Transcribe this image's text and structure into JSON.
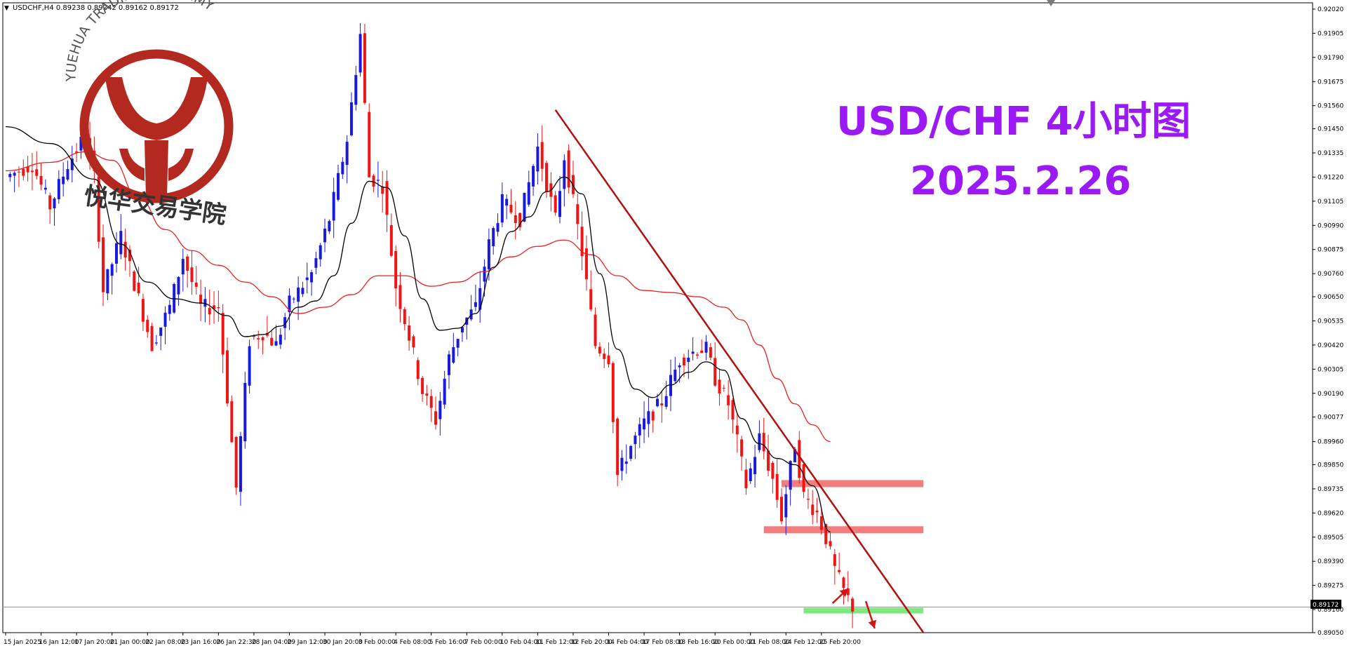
{
  "header": {
    "collapse_icon": "triangle-down-icon",
    "text": "USDCHF,H4  0.89238 0.89242 0.89162 0.89172"
  },
  "overlay": {
    "title": "USD/CHF 4小时图",
    "date": "2025.2.26",
    "color": "#9b19f5"
  },
  "watermark": {
    "arc_text": "YUEHUA TRADING ACADEMY",
    "cn_text": "悦华交易学院",
    "color": "#b3281f"
  },
  "current_price": "0.89172",
  "chart_data": {
    "type": "candlestick",
    "symbol": "USDCHF",
    "timeframe": "H4",
    "colors": {
      "up": "#1a1adc",
      "down": "#f01414",
      "ma_fast": "#000000",
      "ma_slow": "#ee1e1e",
      "trendline": "#b40f0f",
      "resistance": "#f37c7c",
      "support": "#7de87d"
    },
    "ylim": [
      0.8905,
      0.9205
    ],
    "y_ticks": [
      "0.92020",
      "0.91905",
      "0.91790",
      "0.91675",
      "0.91560",
      "0.91450",
      "0.91335",
      "0.91220",
      "0.91105",
      "0.90990",
      "0.90875",
      "0.90760",
      "0.90650",
      "0.90535",
      "0.90420",
      "0.90305",
      "0.90190",
      "0.90077",
      "0.89960",
      "0.89850",
      "0.89735",
      "0.89620",
      "0.89505",
      "0.89390",
      "0.89275",
      "0.89160",
      "0.89050"
    ],
    "x_ticks": [
      "15 Jan 2025",
      "16 Jan 12:00",
      "17 Jan 20:00",
      "21 Jan 00:00",
      "22 Jan 08:00",
      "23 Jan 16:00",
      "26 Jan 22:30",
      "28 Jan 04:00",
      "29 Jan 12:00",
      "30 Jan 20:00",
      "3 Feb 00:00",
      "4 Feb 08:00",
      "5 Feb 16:00",
      "7 Feb 00:00",
      "10 Feb 04:00",
      "11 Feb 12:00",
      "12 Feb 20:00",
      "14 Feb 04:00",
      "17 Feb 08:00",
      "18 Feb 16:00",
      "20 Feb 00:00",
      "21 Feb 08:00",
      "24 Feb 12:00",
      "25 Feb 20:00"
    ],
    "x_tick_index": [
      0,
      8,
      16,
      24,
      32,
      40,
      48,
      56,
      64,
      72,
      80,
      88,
      96,
      104,
      112,
      120,
      128,
      136,
      144,
      152,
      160,
      168,
      176,
      184
    ],
    "bar_count": 200,
    "anchors": [
      {
        "i": 0,
        "p": 0.9122
      },
      {
        "i": 6,
        "p": 0.9128
      },
      {
        "i": 10,
        "p": 0.9108
      },
      {
        "i": 14,
        "p": 0.9128
      },
      {
        "i": 18,
        "p": 0.9142
      },
      {
        "i": 20,
        "p": 0.9122
      },
      {
        "i": 22,
        "p": 0.9068
      },
      {
        "i": 26,
        "p": 0.9094
      },
      {
        "i": 30,
        "p": 0.9064
      },
      {
        "i": 33,
        "p": 0.9042
      },
      {
        "i": 37,
        "p": 0.906
      },
      {
        "i": 40,
        "p": 0.9084
      },
      {
        "i": 44,
        "p": 0.906
      },
      {
        "i": 48,
        "p": 0.906
      },
      {
        "i": 52,
        "p": 0.8974
      },
      {
        "i": 55,
        "p": 0.9044
      },
      {
        "i": 58,
        "p": 0.9048
      },
      {
        "i": 61,
        "p": 0.9042
      },
      {
        "i": 64,
        "p": 0.9062
      },
      {
        "i": 69,
        "p": 0.9076
      },
      {
        "i": 73,
        "p": 0.9102
      },
      {
        "i": 77,
        "p": 0.914
      },
      {
        "i": 80,
        "p": 0.919
      },
      {
        "i": 82,
        "p": 0.9122
      },
      {
        "i": 85,
        "p": 0.9118
      },
      {
        "i": 88,
        "p": 0.907
      },
      {
        "i": 91,
        "p": 0.9046
      },
      {
        "i": 94,
        "p": 0.902
      },
      {
        "i": 97,
        "p": 0.9006
      },
      {
        "i": 100,
        "p": 0.9036
      },
      {
        "i": 103,
        "p": 0.9052
      },
      {
        "i": 106,
        "p": 0.906
      },
      {
        "i": 109,
        "p": 0.909
      },
      {
        "i": 112,
        "p": 0.911
      },
      {
        "i": 116,
        "p": 0.9102
      },
      {
        "i": 120,
        "p": 0.9136
      },
      {
        "i": 124,
        "p": 0.9102
      },
      {
        "i": 126,
        "p": 0.9132
      },
      {
        "i": 128,
        "p": 0.911
      },
      {
        "i": 130,
        "p": 0.9086
      },
      {
        "i": 133,
        "p": 0.9042
      },
      {
        "i": 136,
        "p": 0.9036
      },
      {
        "i": 138,
        "p": 0.898
      },
      {
        "i": 141,
        "p": 0.8994
      },
      {
        "i": 144,
        "p": 0.9005
      },
      {
        "i": 148,
        "p": 0.9015
      },
      {
        "i": 152,
        "p": 0.9035
      },
      {
        "i": 156,
        "p": 0.904
      },
      {
        "i": 158,
        "p": 0.904
      },
      {
        "i": 160,
        "p": 0.9026
      },
      {
        "i": 163,
        "p": 0.9014
      },
      {
        "i": 165,
        "p": 0.8996
      },
      {
        "i": 167,
        "p": 0.8975
      },
      {
        "i": 170,
        "p": 0.8998
      },
      {
        "i": 173,
        "p": 0.8978
      },
      {
        "i": 175,
        "p": 0.896
      },
      {
        "i": 178,
        "p": 0.8995
      },
      {
        "i": 180,
        "p": 0.897
      },
      {
        "i": 183,
        "p": 0.8962
      },
      {
        "i": 185,
        "p": 0.895
      },
      {
        "i": 187,
        "p": 0.8935
      },
      {
        "i": 189,
        "p": 0.8925
      },
      {
        "i": 191,
        "p": 0.89172
      }
    ],
    "ma_fast": [
      [
        0,
        0.9146
      ],
      [
        10,
        0.9138
      ],
      [
        20,
        0.9121
      ],
      [
        26,
        0.909
      ],
      [
        32,
        0.9072
      ],
      [
        38,
        0.9064
      ],
      [
        44,
        0.9062
      ],
      [
        50,
        0.9056
      ],
      [
        54,
        0.9046
      ],
      [
        58,
        0.9047
      ],
      [
        62,
        0.9051
      ],
      [
        66,
        0.906
      ],
      [
        70,
        0.9063
      ],
      [
        74,
        0.9075
      ],
      [
        78,
        0.91
      ],
      [
        82,
        0.912
      ],
      [
        86,
        0.9117
      ],
      [
        90,
        0.9094
      ],
      [
        94,
        0.9064
      ],
      [
        98,
        0.9049
      ],
      [
        102,
        0.905
      ],
      [
        106,
        0.9057
      ],
      [
        110,
        0.9079
      ],
      [
        114,
        0.9096
      ],
      [
        118,
        0.9103
      ],
      [
        122,
        0.9115
      ],
      [
        126,
        0.9122
      ],
      [
        130,
        0.9114
      ],
      [
        134,
        0.9076
      ],
      [
        138,
        0.904
      ],
      [
        142,
        0.9021
      ],
      [
        146,
        0.9017
      ],
      [
        150,
        0.9023
      ],
      [
        154,
        0.9029
      ],
      [
        158,
        0.9034
      ],
      [
        162,
        0.903
      ],
      [
        166,
        0.9007
      ],
      [
        170,
        0.8995
      ],
      [
        174,
        0.8988
      ],
      [
        178,
        0.8985
      ],
      [
        182,
        0.8975
      ],
      [
        186,
        0.8953
      ]
    ],
    "ma_slow": [
      [
        0,
        0.9125
      ],
      [
        10,
        0.9129
      ],
      [
        18,
        0.9134
      ],
      [
        24,
        0.913
      ],
      [
        30,
        0.9112
      ],
      [
        36,
        0.9097
      ],
      [
        42,
        0.9087
      ],
      [
        48,
        0.908
      ],
      [
        54,
        0.9072
      ],
      [
        60,
        0.9065
      ],
      [
        66,
        0.9057
      ],
      [
        72,
        0.906
      ],
      [
        78,
        0.9066
      ],
      [
        84,
        0.9075
      ],
      [
        90,
        0.9075
      ],
      [
        96,
        0.907
      ],
      [
        102,
        0.9072
      ],
      [
        108,
        0.9077
      ],
      [
        114,
        0.9084
      ],
      [
        120,
        0.9089
      ],
      [
        126,
        0.9092
      ],
      [
        132,
        0.9085
      ],
      [
        138,
        0.9075
      ],
      [
        144,
        0.9068
      ],
      [
        150,
        0.9067
      ],
      [
        156,
        0.9065
      ],
      [
        162,
        0.906
      ],
      [
        166,
        0.9054
      ],
      [
        170,
        0.9042
      ],
      [
        174,
        0.9026
      ],
      [
        178,
        0.9014
      ],
      [
        182,
        0.9004
      ],
      [
        186,
        0.8996
      ]
    ],
    "trendline": {
      "from": [
        124,
        0.9154
      ],
      "to": [
        207,
        0.8905
      ]
    },
    "resistance_zones": [
      {
        "from": 175,
        "to": 207,
        "price": 0.8976
      },
      {
        "from": 171,
        "to": 207,
        "price": 0.8954
      }
    ],
    "support_zone": {
      "from": 180,
      "to": 207,
      "price": 0.89155
    },
    "arrows": [
      {
        "from": [
          186.5,
          0.8919
        ],
        "to": [
          190,
          0.8926
        ],
        "dir": "up"
      },
      {
        "from": [
          194,
          0.892
        ],
        "to": [
          196,
          0.8907
        ],
        "dir": "down"
      }
    ]
  }
}
